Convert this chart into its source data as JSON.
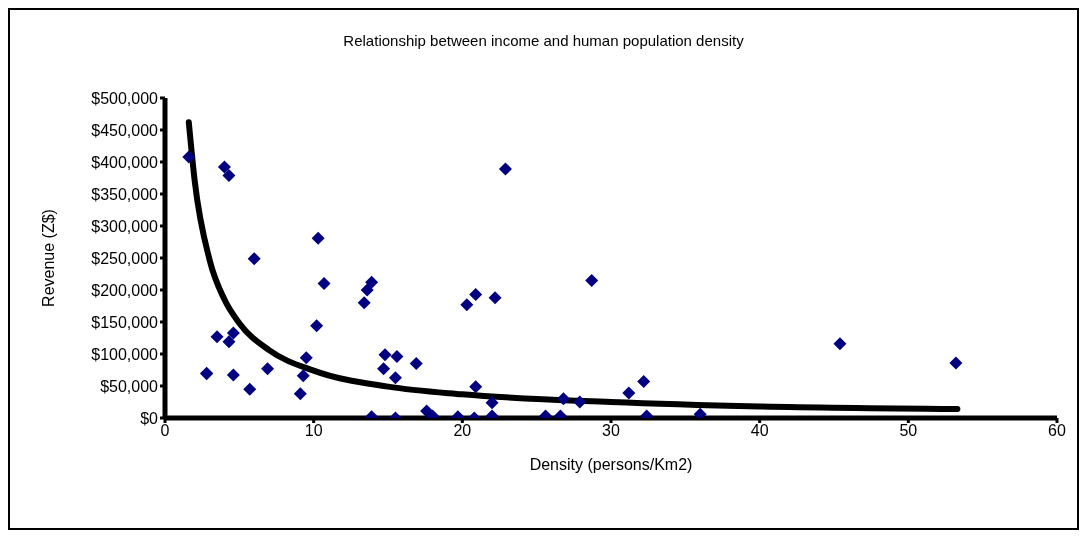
{
  "chart_data": {
    "type": "scatter",
    "title": "Relationship between income and human population density",
    "xlabel": "Density (persons/Km2)",
    "ylabel": "Revenue (Z$)",
    "xlim": [
      0,
      60
    ],
    "xticks": [
      0,
      10,
      20,
      30,
      40,
      50,
      60
    ],
    "ylim": [
      0,
      500000
    ],
    "yticks": [
      {
        "value": 0,
        "label": "$0"
      },
      {
        "value": 50000,
        "label": "$50,000"
      },
      {
        "value": 100000,
        "label": "$100,000"
      },
      {
        "value": 150000,
        "label": "$150,000"
      },
      {
        "value": 200000,
        "label": "$200,000"
      },
      {
        "value": 250000,
        "label": "$250,000"
      },
      {
        "value": 300000,
        "label": "$300,000"
      },
      {
        "value": 350000,
        "label": "$350,000"
      },
      {
        "value": 400000,
        "label": "$400,000"
      },
      {
        "value": 450000,
        "label": "$450,000"
      },
      {
        "value": 500000,
        "label": "$500,000"
      }
    ],
    "grid": false,
    "legend": false,
    "marker": "diamond",
    "series": [
      {
        "color": "#000080",
        "x": [
          1.6,
          4.0,
          4.3,
          2.8,
          3.5,
          4.6,
          4.3,
          4.6,
          2.8,
          5.7,
          6.9,
          6.0,
          10.3,
          10.7,
          10.2,
          9.5,
          9.3,
          9.1,
          13.9,
          13.6,
          13.4,
          14.8,
          15.6,
          14.7,
          15.5,
          16.9,
          13.9,
          15.5,
          17.6,
          18.0,
          19.7,
          20.3,
          20.9,
          22.2,
          22.9,
          28.7,
          20.9,
          22.0,
          20.8,
          22.0,
          25.6,
          26.6,
          26.8,
          27.9,
          31.2,
          32.2,
          32.4,
          36.0,
          45.4,
          53.2
        ],
        "values": [
          408000,
          392000,
          379000,
          70000,
          127000,
          133000,
          119000,
          67000,
          69000,
          45000,
          77000,
          249000,
          281000,
          210000,
          144000,
          94000,
          66000,
          38000,
          212000,
          200000,
          180000,
          99000,
          96000,
          77000,
          63000,
          85000,
          2000,
          0,
          11000,
          3000,
          2000,
          177000,
          193000,
          188000,
          389000,
          215000,
          49000,
          24000,
          0,
          3000,
          3000,
          3000,
          30000,
          25000,
          39000,
          57000,
          3000,
          6000,
          116000,
          86000
        ]
      },
      {
        "type": "line",
        "color": "#000000",
        "marker": "none",
        "line_style": "solid",
        "x": [
          1.6,
          2,
          3,
          4,
          5,
          7,
          10,
          15,
          20,
          30,
          40,
          53.3
        ],
        "values": [
          462000,
          370000,
          247000,
          185000,
          148000,
          106000,
          74000,
          49000,
          37000,
          25000,
          18000,
          14000
        ]
      }
    ]
  }
}
